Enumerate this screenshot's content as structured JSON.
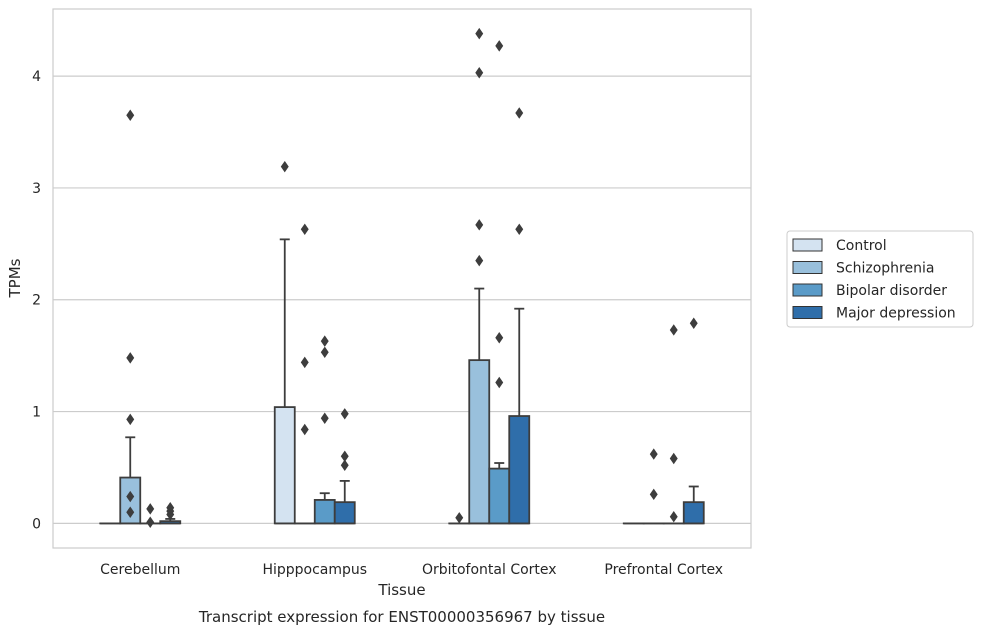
{
  "chart_data": {
    "type": "box",
    "caption": "Transcript expression for ENST00000356967 by tissue",
    "xlabel": "Tissue",
    "ylabel": "TPMs",
    "ylim": [
      -0.22,
      4.6
    ],
    "yticks": [
      0,
      1,
      2,
      3,
      4
    ],
    "grid": "horizontal",
    "legend_position": "right",
    "categories": [
      "Cerebellum",
      "Hipppocampus",
      "Orbitofontal Cortex",
      "Prefrontal Cortex"
    ],
    "series": [
      {
        "name": "Control",
        "color": "#d4e3f1",
        "boxes": [
          {
            "min": 0,
            "q1": 0,
            "median": 0,
            "q3": 0,
            "max": 0,
            "outliers": []
          },
          {
            "min": 0,
            "q1": 0,
            "median": 0,
            "q3": 1.04,
            "max": 2.54,
            "outliers": [
              3.19
            ]
          },
          {
            "min": 0,
            "q1": 0,
            "median": 0,
            "q3": 0,
            "max": 0,
            "outliers": [
              0.05
            ]
          },
          {
            "min": 0,
            "q1": 0,
            "median": 0,
            "q3": 0,
            "max": 0,
            "outliers": []
          }
        ]
      },
      {
        "name": "Schizophrenia",
        "color": "#99c0dc",
        "boxes": [
          {
            "min": 0,
            "q1": 0,
            "median": 0,
            "q3": 0.41,
            "max": 0.77,
            "outliers": [
              0.93,
              0.24,
              0.1,
              1.48,
              3.65
            ]
          },
          {
            "min": 0,
            "q1": 0,
            "median": 0,
            "q3": 0,
            "max": 0,
            "outliers": [
              2.63,
              1.44,
              0.84
            ]
          },
          {
            "min": 0,
            "q1": 0,
            "median": 0,
            "q3": 1.46,
            "max": 2.1,
            "outliers": [
              2.67,
              2.35,
              4.03,
              4.38
            ]
          },
          {
            "min": 0,
            "q1": 0,
            "median": 0,
            "q3": 0,
            "max": 0,
            "outliers": [
              0.62,
              0.26
            ]
          }
        ]
      },
      {
        "name": "Bipolar disorder",
        "color": "#5a9bc8",
        "boxes": [
          {
            "min": 0,
            "q1": 0,
            "median": 0,
            "q3": 0,
            "max": 0,
            "outliers": [
              0.13,
              0.01
            ]
          },
          {
            "min": 0,
            "q1": 0,
            "median": 0,
            "q3": 0.21,
            "max": 0.27,
            "outliers": [
              1.63,
              1.53,
              0.94
            ]
          },
          {
            "min": 0,
            "q1": 0,
            "median": 0,
            "q3": 0.49,
            "max": 0.54,
            "outliers": [
              1.66,
              1.26,
              4.27
            ]
          },
          {
            "min": 0,
            "q1": 0,
            "median": 0,
            "q3": 0,
            "max": 0,
            "outliers": [
              0.06,
              1.73,
              0.58
            ]
          }
        ]
      },
      {
        "name": "Major depression",
        "color": "#2f6eaa",
        "boxes": [
          {
            "min": 0,
            "q1": 0,
            "median": 0,
            "q3": 0.02,
            "max": 0.04,
            "outliers": [
              0.14,
              0.11,
              0.08
            ]
          },
          {
            "min": 0,
            "q1": 0,
            "median": 0,
            "q3": 0.19,
            "max": 0.38,
            "outliers": [
              0.98,
              0.6,
              0.52
            ]
          },
          {
            "min": 0,
            "q1": 0,
            "median": 0,
            "q3": 0.96,
            "max": 1.92,
            "outliers": [
              3.67,
              2.63
            ]
          },
          {
            "min": 0,
            "q1": 0,
            "median": 0,
            "q3": 0.19,
            "max": 0.33,
            "outliers": [
              1.79
            ]
          }
        ]
      }
    ]
  }
}
